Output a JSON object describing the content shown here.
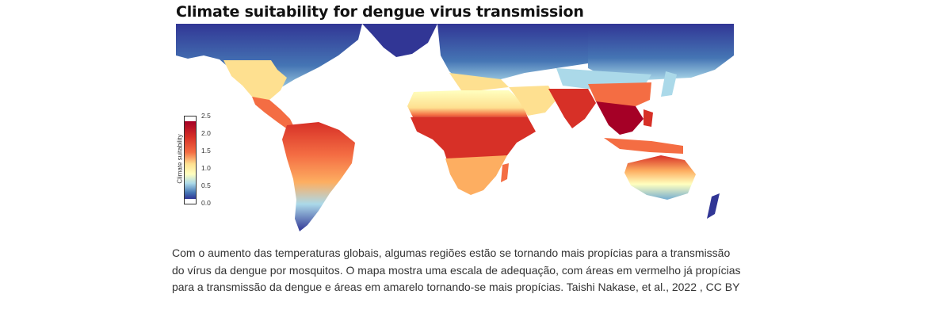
{
  "map": {
    "title": "Climate suitability for dengue virus transmission",
    "legend": {
      "title": "Climate suitability",
      "ticks": [
        "2.5",
        "2.0",
        "1.5",
        "1.0",
        "0.5",
        "0.0"
      ],
      "gradient_colors": [
        "#b2182b",
        "#d6604d",
        "#f4a582",
        "#fddb87",
        "#ffffbf",
        "#abd9e9",
        "#4575b4",
        "#313695"
      ]
    },
    "colors": {
      "background_ocean": "#ffffff",
      "low_suitability": "#313695",
      "medium_low": "#74add1",
      "neutral": "#ffffbf",
      "medium_high": "#fdae61",
      "high_suitability": "#a50026"
    }
  },
  "caption": {
    "text": "Com o aumento das temperaturas globais, algumas regiões estão se tornando mais propícias para a transmissão do vírus da dengue por mosquitos. O mapa mostra uma escala de adequação, com áreas em vermelho já propícias para a transmissão da dengue e áreas em amarelo tornando-se mais propícias. Taishi Nakase, et al., 2022 , CC BY"
  }
}
